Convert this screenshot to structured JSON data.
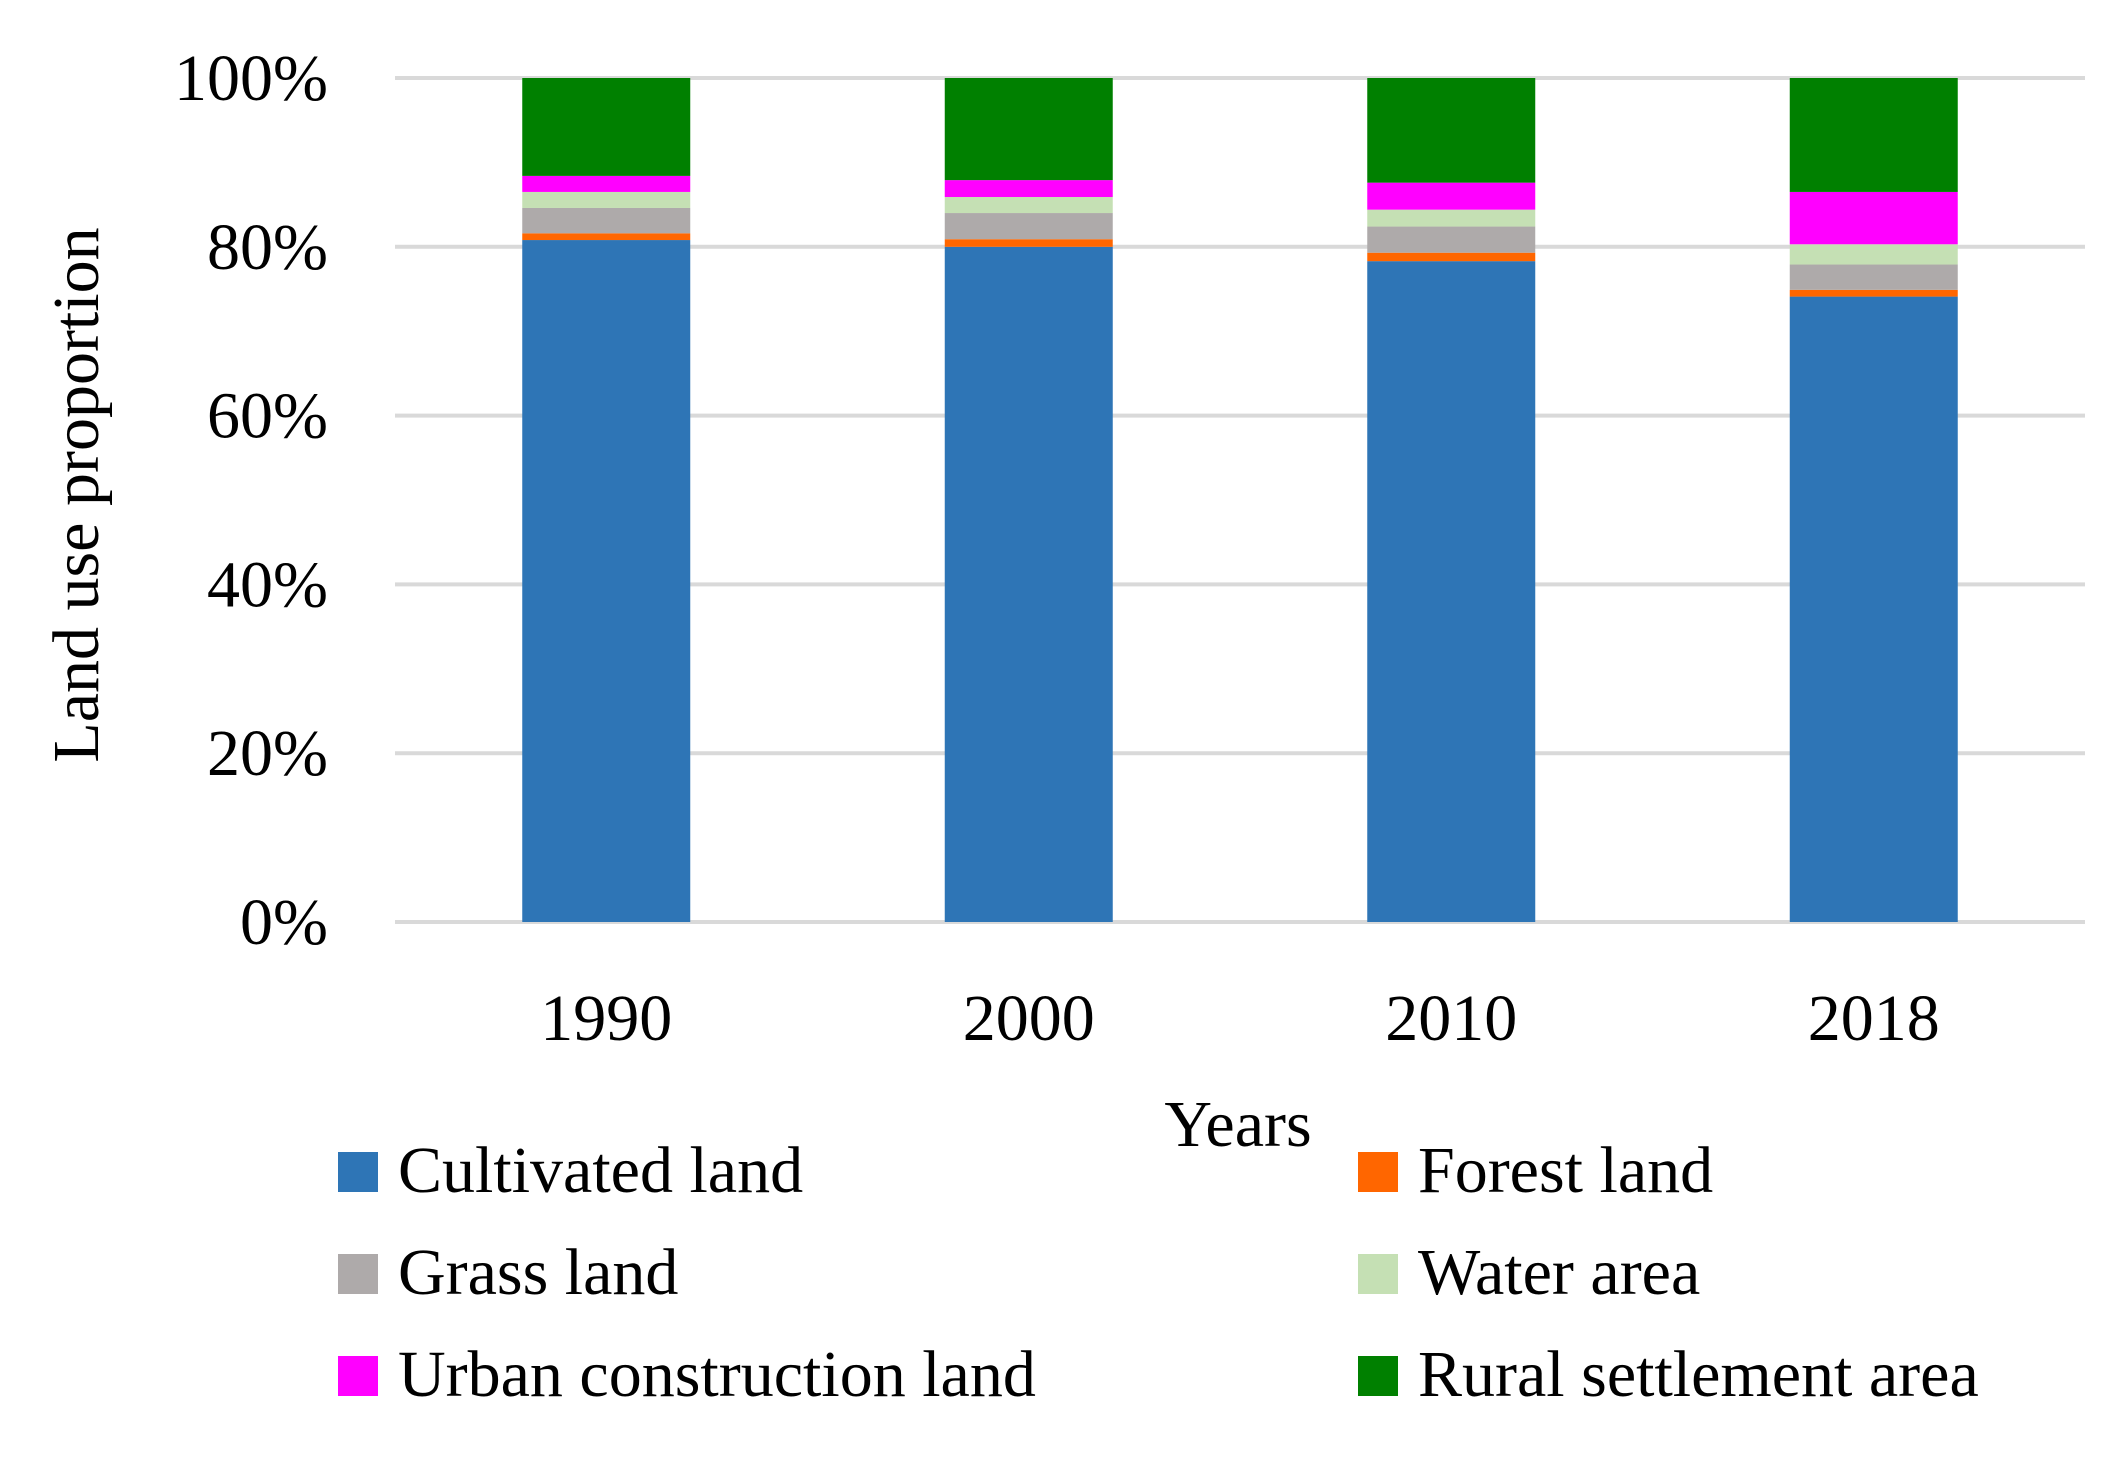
{
  "chart_data": {
    "type": "bar",
    "stacked": true,
    "percent": true,
    "title": "",
    "xlabel": "Years",
    "ylabel": "Land use proportion",
    "ylim": [
      0,
      100
    ],
    "yticks": [
      "0%",
      "20%",
      "40%",
      "60%",
      "80%",
      "100%"
    ],
    "ytick_values": [
      0,
      20,
      40,
      60,
      80,
      100
    ],
    "grid": true,
    "legend_position": "bottom",
    "categories": [
      "1990",
      "2000",
      "2010",
      "2018"
    ],
    "series": [
      {
        "name": "Cultivated land",
        "color": "#2e75b6",
        "values": [
          80.8,
          80.0,
          78.3,
          74.1
        ]
      },
      {
        "name": "Forest land",
        "color": "#ff6600",
        "values": [
          0.8,
          0.9,
          1.0,
          0.8
        ]
      },
      {
        "name": "Grass land",
        "color": "#aeaaaa",
        "values": [
          3.0,
          3.1,
          3.1,
          3.0
        ]
      },
      {
        "name": "Water area",
        "color": "#c5e0b4",
        "values": [
          1.9,
          1.9,
          2.0,
          2.4
        ]
      },
      {
        "name": "Urban construction land",
        "color": "#ff00ff",
        "values": [
          1.9,
          2.0,
          3.2,
          6.2
        ]
      },
      {
        "name": "Rural settlement area",
        "color": "#008000",
        "values": [
          11.6,
          12.1,
          12.4,
          13.5
        ]
      }
    ]
  }
}
